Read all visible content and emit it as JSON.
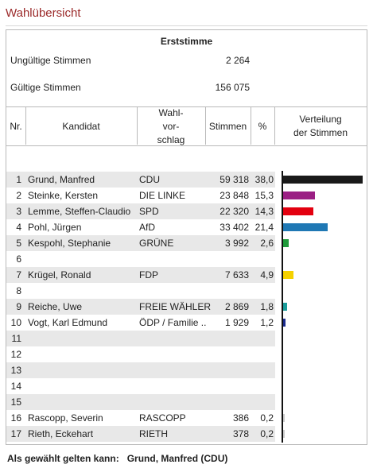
{
  "page": {
    "title": "Wahlübersicht"
  },
  "summary": {
    "heading": "Erststimme",
    "invalid_label": "Ungültige Stimmen",
    "invalid_value": "2 264",
    "valid_label": "Gültige Stimmen",
    "valid_value": "156 075"
  },
  "table": {
    "headers": {
      "nr": "Nr.",
      "kandidat": "Kandidat",
      "wahl1": "Wahl-",
      "wahl2": "vor-",
      "wahl3": "schlag",
      "stimmen": "Stimmen",
      "pct": "%",
      "vert1": "Verteilung",
      "vert2": "der Stimmen"
    },
    "rows": [
      {
        "nr": "1",
        "name": "Grund, Manfred",
        "party": "CDU",
        "votes": "59 318",
        "pct": "38,0"
      },
      {
        "nr": "2",
        "name": "Steinke, Kersten",
        "party": "DIE LINKE",
        "votes": "23 848",
        "pct": "15,3"
      },
      {
        "nr": "3",
        "name": "Lemme, Steffen-Claudio",
        "party": "SPD",
        "votes": "22 320",
        "pct": "14,3"
      },
      {
        "nr": "4",
        "name": "Pohl, Jürgen",
        "party": "AfD",
        "votes": "33 402",
        "pct": "21,4"
      },
      {
        "nr": "5",
        "name": "Kespohl, Stephanie",
        "party": "GRÜNE",
        "votes": "3 992",
        "pct": "2,6"
      },
      {
        "nr": "6",
        "name": "",
        "party": "",
        "votes": "",
        "pct": ""
      },
      {
        "nr": "7",
        "name": "Krügel, Ronald",
        "party": "FDP",
        "votes": "7 633",
        "pct": "4,9"
      },
      {
        "nr": "8",
        "name": "",
        "party": "",
        "votes": "",
        "pct": ""
      },
      {
        "nr": "9",
        "name": "Reiche, Uwe",
        "party": "FREIE WÄHLER",
        "votes": "2 869",
        "pct": "1,8"
      },
      {
        "nr": "10",
        "name": "Vogt, Karl Edmund",
        "party": "ÖDP / Familie ..",
        "votes": "1 929",
        "pct": "1,2"
      },
      {
        "nr": "11",
        "name": "",
        "party": "",
        "votes": "",
        "pct": ""
      },
      {
        "nr": "12",
        "name": "",
        "party": "",
        "votes": "",
        "pct": ""
      },
      {
        "nr": "13",
        "name": "",
        "party": "",
        "votes": "",
        "pct": ""
      },
      {
        "nr": "14",
        "name": "",
        "party": "",
        "votes": "",
        "pct": ""
      },
      {
        "nr": "15",
        "name": "",
        "party": "",
        "votes": "",
        "pct": ""
      },
      {
        "nr": "16",
        "name": "Rascopp, Severin",
        "party": "RASCOPP",
        "votes": "386",
        "pct": "0,2"
      },
      {
        "nr": "17",
        "name": "Rieth, Eckehart",
        "party": "RIETH",
        "votes": "378",
        "pct": "0,2"
      }
    ]
  },
  "chart_data": {
    "type": "bar",
    "categories": [
      "1",
      "2",
      "3",
      "4",
      "5",
      "6",
      "7",
      "8",
      "9",
      "10",
      "11",
      "12",
      "13",
      "14",
      "15",
      "16",
      "17"
    ],
    "values": [
      38.0,
      15.3,
      14.3,
      21.4,
      2.6,
      null,
      4.9,
      null,
      1.8,
      1.2,
      null,
      null,
      null,
      null,
      null,
      0.2,
      0.2
    ],
    "colors": [
      "#1a1a1a",
      "#9b1f84",
      "#e3000f",
      "#1f78b4",
      "#1f9a3a",
      null,
      "#f5d100",
      null,
      "#1a9c9a",
      "#1a2a8c",
      null,
      null,
      null,
      null,
      null,
      "#cccccc",
      "#cccccc"
    ],
    "xlim": [
      0,
      38.0
    ]
  },
  "footer": {
    "label": "Als gewählt gelten kann:",
    "value": "Grund, Manfred (CDU)"
  }
}
